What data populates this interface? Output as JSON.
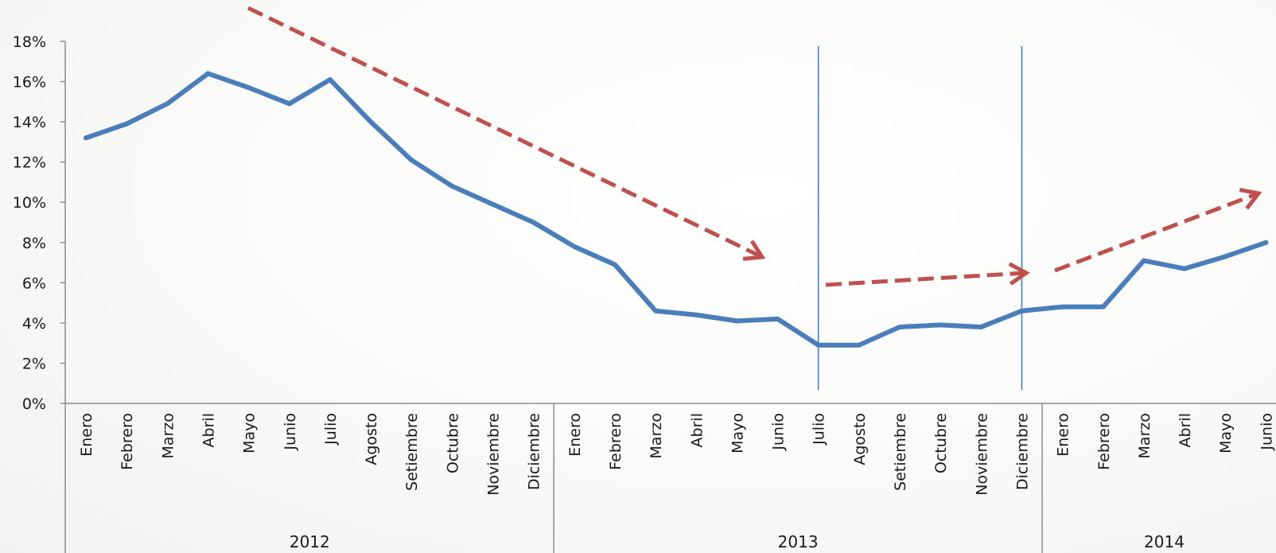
{
  "chart_data": {
    "type": "line",
    "title": "",
    "xlabel": "",
    "ylabel": "",
    "ylim": [
      0,
      18
    ],
    "y_tick_labels": [
      "0%",
      "2%",
      "4%",
      "6%",
      "8%",
      "10%",
      "12%",
      "14%",
      "16%",
      "18%"
    ],
    "grid": false,
    "legend": "none",
    "categories": [
      "Enero",
      "Febrero",
      "Marzo",
      "Abril",
      "Mayo",
      "Junio",
      "Julio",
      "Agosto",
      "Setiembre",
      "Octubre",
      "Noviembre",
      "Diciembre",
      "Enero",
      "Febrero",
      "Marzo",
      "Abril",
      "Mayo",
      "Junio",
      "Julio",
      "Agosto",
      "Setiembre",
      "Octubre",
      "Noviembre",
      "Diciembre",
      "Enero",
      "Febrero",
      "Marzo",
      "Abril",
      "Mayo",
      "Junio"
    ],
    "groups": [
      {
        "label": "2012",
        "count": 12
      },
      {
        "label": "2013",
        "count": 12
      },
      {
        "label": "2014",
        "count": 6
      }
    ],
    "series": [
      {
        "color": "#4a7ebb",
        "values": [
          13.2,
          13.9,
          14.9,
          16.4,
          15.7,
          14.9,
          16.1,
          14.0,
          12.1,
          10.8,
          9.9,
          9.0,
          7.8,
          6.9,
          4.6,
          4.4,
          4.1,
          4.2,
          2.9,
          2.9,
          3.8,
          3.9,
          3.8,
          4.6,
          4.8,
          4.8,
          7.1,
          6.7,
          7.3,
          8.0
        ]
      }
    ],
    "annotations": {
      "trend_arrow_color": "#c0504d",
      "reference_line_color": "#4a7ebb",
      "reference_lines_at_category_index": [
        18,
        23.5
      ]
    }
  }
}
